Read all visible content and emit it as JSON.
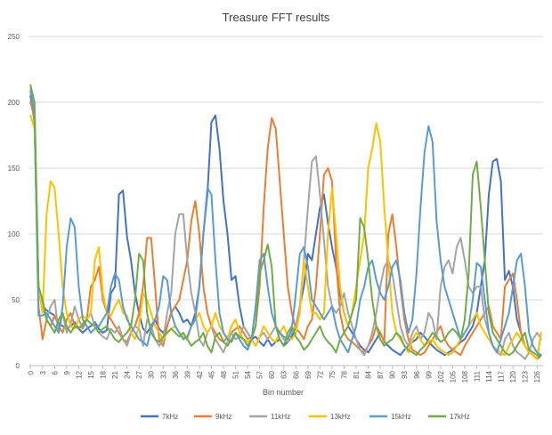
{
  "chart_data": {
    "type": "line",
    "title": "Treasure FFT results",
    "xlabel": "Bin number",
    "ylabel": "",
    "ylim": [
      0,
      250
    ],
    "yticks": [
      0,
      50,
      100,
      150,
      200,
      250
    ],
    "x_range": [
      0,
      127
    ],
    "xtick_step": 3,
    "grid": "horizontal",
    "legend_position": "bottom",
    "series": [
      {
        "name": "7kHz",
        "color": "#4472C4",
        "values": [
          205,
          185,
          60,
          45,
          42,
          40,
          38,
          32,
          30,
          28,
          30,
          33,
          28,
          25,
          28,
          30,
          33,
          28,
          25,
          27,
          55,
          60,
          130,
          133,
          98,
          80,
          55,
          40,
          28,
          25,
          30,
          35,
          28,
          25,
          30,
          40,
          45,
          40,
          33,
          35,
          30,
          40,
          60,
          100,
          130,
          185,
          190,
          165,
          125,
          100,
          65,
          68,
          45,
          30,
          25,
          20,
          22,
          18,
          15,
          20,
          15,
          18,
          20,
          15,
          18,
          22,
          30,
          45,
          60,
          85,
          80,
          100,
          120,
          130,
          108,
          90,
          75,
          55,
          40,
          30,
          25,
          20,
          15,
          12,
          10,
          15,
          20,
          25,
          18,
          15,
          12,
          10,
          8,
          12,
          15,
          18,
          20,
          25,
          22,
          18,
          15,
          12,
          10,
          8,
          10,
          12,
          15,
          18,
          20,
          25,
          30,
          40,
          60,
          80,
          130,
          155,
          157,
          140,
          65,
          72,
          60,
          35,
          25,
          15,
          10,
          8,
          5,
          8
        ]
      },
      {
        "name": "9kHz",
        "color": "#ED7D31",
        "values": [
          200,
          188,
          45,
          20,
          35,
          30,
          38,
          30,
          25,
          35,
          40,
          30,
          28,
          32,
          35,
          60,
          65,
          75,
          50,
          40,
          35,
          30,
          25,
          20,
          18,
          25,
          30,
          40,
          60,
          97,
          97,
          60,
          20,
          15,
          30,
          40,
          45,
          50,
          65,
          80,
          110,
          125,
          100,
          60,
          40,
          30,
          25,
          20,
          18,
          22,
          25,
          28,
          30,
          25,
          20,
          22,
          30,
          60,
          120,
          165,
          188,
          180,
          140,
          100,
          60,
          40,
          28,
          25,
          20,
          30,
          35,
          60,
          100,
          145,
          150,
          140,
          80,
          40,
          25,
          20,
          18,
          15,
          12,
          10,
          15,
          20,
          30,
          25,
          18,
          100,
          115,
          90,
          60,
          35,
          20,
          12,
          10,
          8,
          10,
          15,
          20,
          25,
          30,
          20,
          15,
          12,
          10,
          8,
          15,
          20,
          25,
          30,
          35,
          40,
          45,
          30,
          25,
          20,
          60,
          65,
          70,
          50,
          25,
          15,
          10,
          8,
          5,
          25
        ]
      },
      {
        "name": "11kHz",
        "color": "#A5A5A5",
        "values": [
          210,
          195,
          55,
          45,
          35,
          45,
          50,
          25,
          40,
          25,
          32,
          45,
          35,
          28,
          35,
          40,
          30,
          25,
          22,
          20,
          28,
          25,
          30,
          20,
          15,
          25,
          30,
          28,
          15,
          35,
          30,
          20,
          15,
          20,
          40,
          55,
          100,
          115,
          115,
          80,
          55,
          40,
          20,
          15,
          25,
          30,
          20,
          15,
          10,
          18,
          25,
          20,
          22,
          30,
          25,
          20,
          15,
          22,
          25,
          20,
          25,
          30,
          25,
          20,
          18,
          25,
          30,
          45,
          80,
          120,
          155,
          159,
          130,
          95,
          60,
          45,
          40,
          45,
          55,
          40,
          30,
          20,
          12,
          8,
          15,
          25,
          40,
          60,
          75,
          80,
          70,
          50,
          30,
          20,
          15,
          25,
          30,
          20,
          25,
          40,
          35,
          20,
          60,
          75,
          80,
          70,
          90,
          97,
          80,
          60,
          55,
          60,
          60,
          35,
          25,
          15,
          10,
          8,
          20,
          25,
          15,
          10,
          8,
          5,
          10,
          20,
          25,
          20
        ]
      },
      {
        "name": "13kHz",
        "color": "#FFC000",
        "values": [
          190,
          180,
          60,
          40,
          115,
          140,
          135,
          100,
          60,
          40,
          30,
          28,
          35,
          38,
          35,
          40,
          80,
          90,
          55,
          40,
          38,
          45,
          50,
          40,
          38,
          25,
          20,
          30,
          55,
          50,
          40,
          30,
          25,
          20,
          25,
          28,
          30,
          25,
          22,
          20,
          30,
          35,
          40,
          30,
          25,
          30,
          40,
          30,
          25,
          20,
          30,
          35,
          25,
          20,
          18,
          20,
          15,
          22,
          30,
          25,
          20,
          18,
          25,
          30,
          22,
          20,
          25,
          40,
          80,
          60,
          40,
          40,
          35,
          40,
          100,
          135,
          100,
          60,
          40,
          30,
          40,
          60,
          80,
          100,
          150,
          165,
          184,
          170,
          120,
          80,
          40,
          25,
          20,
          15,
          10,
          20,
          25,
          20,
          15,
          18,
          20,
          15,
          12,
          10,
          8,
          10,
          15,
          20,
          25,
          30,
          35,
          40,
          30,
          25,
          20,
          15,
          12,
          10,
          8,
          15,
          20,
          25,
          20,
          15,
          10,
          8,
          5,
          25
        ]
      },
      {
        "name": "15kHz",
        "color": "#5B9BD5",
        "values": [
          208,
          190,
          38,
          38,
          40,
          35,
          30,
          25,
          45,
          90,
          112,
          105,
          60,
          35,
          30,
          25,
          28,
          30,
          35,
          40,
          60,
          70,
          65,
          45,
          35,
          30,
          25,
          20,
          18,
          15,
          28,
          35,
          45,
          68,
          65,
          40,
          30,
          25,
          20,
          22,
          30,
          35,
          60,
          100,
          135,
          130,
          80,
          40,
          25,
          20,
          18,
          25,
          20,
          15,
          12,
          20,
          45,
          80,
          85,
          60,
          40,
          30,
          25,
          22,
          20,
          28,
          55,
          85,
          90,
          75,
          50,
          45,
          40,
          35,
          40,
          45,
          30,
          20,
          15,
          10,
          20,
          30,
          50,
          60,
          75,
          80,
          65,
          55,
          50,
          60,
          75,
          80,
          65,
          40,
          25,
          35,
          70,
          120,
          162,
          182,
          170,
          110,
          80,
          60,
          50,
          40,
          30,
          20,
          25,
          30,
          50,
          78,
          75,
          50,
          25,
          15,
          10,
          20,
          30,
          40,
          60,
          80,
          85,
          60,
          25,
          15,
          10,
          8
        ]
      },
      {
        "name": "17kHz",
        "color": "#70AD47",
        "values": [
          213,
          200,
          60,
          50,
          35,
          30,
          25,
          35,
          40,
          30,
          25,
          30,
          28,
          30,
          35,
          32,
          30,
          25,
          28,
          30,
          25,
          20,
          18,
          22,
          25,
          30,
          50,
          85,
          80,
          40,
          25,
          20,
          18,
          22,
          25,
          28,
          25,
          22,
          25,
          20,
          15,
          18,
          20,
          25,
          15,
          10,
          22,
          25,
          18,
          15,
          20,
          25,
          22,
          20,
          15,
          20,
          30,
          70,
          80,
          92,
          75,
          30,
          20,
          15,
          25,
          30,
          22,
          18,
          12,
          15,
          20,
          25,
          30,
          22,
          18,
          15,
          10,
          20,
          25,
          30,
          40,
          50,
          112,
          105,
          80,
          50,
          30,
          20,
          15,
          18,
          20,
          25,
          22,
          15,
          12,
          10,
          8,
          12,
          15,
          20,
          25,
          22,
          18,
          20,
          25,
          28,
          25,
          20,
          35,
          70,
          145,
          155,
          120,
          80,
          40,
          25,
          20,
          15,
          10,
          8,
          10,
          15,
          20,
          25,
          12,
          10,
          8,
          8
        ]
      }
    ]
  }
}
